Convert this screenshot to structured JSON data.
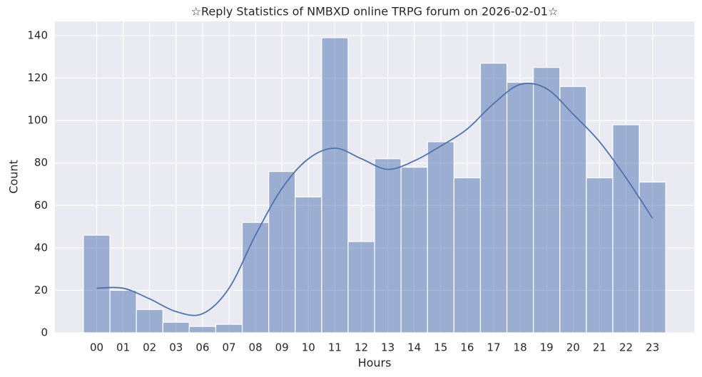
{
  "chart_data": {
    "type": "histogram",
    "title": "☆Reply Statistics of NMBXD online TRPG forum on 2026-02-01☆",
    "x_label": "Hours",
    "y_label": "Count",
    "categories": [
      "00",
      "01",
      "02",
      "03",
      "06",
      "07",
      "08",
      "09",
      "10",
      "11",
      "12",
      "13",
      "14",
      "15",
      "16",
      "17",
      "18",
      "19",
      "20",
      "21",
      "22",
      "23"
    ],
    "values": [
      46,
      20,
      11,
      5,
      3,
      4,
      52,
      76,
      64,
      139,
      43,
      82,
      78,
      90,
      73,
      127,
      118,
      125,
      116,
      73,
      98,
      71
    ],
    "color": "#4c72b0",
    "kde_values": [
      21,
      21,
      16,
      10,
      9,
      21,
      46,
      68,
      82,
      87,
      82,
      77,
      81,
      88,
      96,
      108,
      117,
      115,
      103,
      90,
      73,
      54
    ],
    "kde_color": "#4c72b0",
    "ylim": [
      0,
      146.7
    ],
    "yticks": [
      0,
      20,
      40,
      60,
      80,
      100,
      120,
      140
    ],
    "grid": true
  }
}
